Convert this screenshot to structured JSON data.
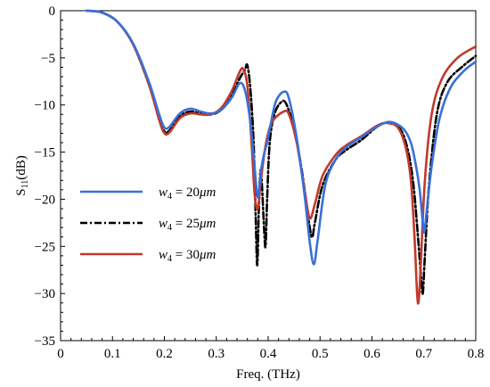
{
  "chart_data": {
    "type": "line",
    "title": "",
    "xlabel": "Freq. (THz)",
    "ylabel": "S11(dB)",
    "ylabel_main": "S",
    "ylabel_sub": "11",
    "ylabel_unit": "(dB)",
    "xlim": [
      0,
      0.8
    ],
    "ylim": [
      -35,
      0
    ],
    "x_ticks": [
      0,
      0.1,
      0.2,
      0.3,
      0.4,
      0.5,
      0.6,
      0.7,
      0.8
    ],
    "x_tick_labels": [
      "0",
      "0.1",
      "0.2",
      "0.3",
      "0.4",
      "0.5",
      "0.6",
      "0.7",
      "0.8"
    ],
    "y_ticks": [
      0,
      -5,
      -10,
      -15,
      -20,
      -25,
      -30,
      -35
    ],
    "y_tick_labels": [
      "0",
      "−5",
      "−10",
      "−15",
      "−20",
      "−25",
      "−30",
      "−35"
    ],
    "grid": false,
    "legend_position": "center-left",
    "series": [
      {
        "name": "w4 = 20μm",
        "legend_label": "w4 = 20μm",
        "legend_var": "w",
        "legend_sub": "4",
        "legend_value": " = 20",
        "legend_unit": "μm",
        "color": "#3a6fd8",
        "style": "solid",
        "points": [
          [
            0.05,
            0
          ],
          [
            0.08,
            -0.2
          ],
          [
            0.11,
            -1.2
          ],
          [
            0.14,
            -3.5
          ],
          [
            0.17,
            -7.5
          ],
          [
            0.19,
            -11
          ],
          [
            0.2,
            -12.4
          ],
          [
            0.21,
            -12.3
          ],
          [
            0.23,
            -10.9
          ],
          [
            0.25,
            -10.4
          ],
          [
            0.27,
            -10.7
          ],
          [
            0.29,
            -10.9
          ],
          [
            0.31,
            -10.5
          ],
          [
            0.33,
            -9.2
          ],
          [
            0.345,
            -7.7
          ],
          [
            0.355,
            -8.4
          ],
          [
            0.365,
            -11.5
          ],
          [
            0.373,
            -16
          ],
          [
            0.38,
            -19.8
          ],
          [
            0.386,
            -17
          ],
          [
            0.392,
            -15.2
          ],
          [
            0.398,
            -14
          ],
          [
            0.405,
            -12
          ],
          [
            0.415,
            -9.6
          ],
          [
            0.43,
            -8.6
          ],
          [
            0.44,
            -9.3
          ],
          [
            0.455,
            -13.5
          ],
          [
            0.47,
            -19.5
          ],
          [
            0.48,
            -24.5
          ],
          [
            0.488,
            -26.9
          ],
          [
            0.495,
            -24.5
          ],
          [
            0.51,
            -18.5
          ],
          [
            0.53,
            -15.8
          ],
          [
            0.55,
            -14.5
          ],
          [
            0.58,
            -13.4
          ],
          [
            0.61,
            -12.3
          ],
          [
            0.635,
            -11.8
          ],
          [
            0.66,
            -12.5
          ],
          [
            0.675,
            -14
          ],
          [
            0.685,
            -16.5
          ],
          [
            0.692,
            -19
          ],
          [
            0.698,
            -22.5
          ],
          [
            0.701,
            -23.5
          ],
          [
            0.705,
            -21.5
          ],
          [
            0.715,
            -16.5
          ],
          [
            0.73,
            -11.5
          ],
          [
            0.75,
            -8.3
          ],
          [
            0.775,
            -6.5
          ],
          [
            0.8,
            -5.4
          ]
        ]
      },
      {
        "name": "w4 = 25μm",
        "legend_label": "w4 = 25μm",
        "legend_var": "w",
        "legend_sub": "4",
        "legend_value": " = 25",
        "legend_unit": "μm",
        "color": "#000000",
        "style": "dashdot",
        "points": [
          [
            0.05,
            0
          ],
          [
            0.08,
            -0.2
          ],
          [
            0.11,
            -1.2
          ],
          [
            0.14,
            -3.6
          ],
          [
            0.17,
            -7.8
          ],
          [
            0.19,
            -11.4
          ],
          [
            0.2,
            -12.8
          ],
          [
            0.21,
            -12.7
          ],
          [
            0.23,
            -11.2
          ],
          [
            0.25,
            -10.7
          ],
          [
            0.27,
            -10.9
          ],
          [
            0.29,
            -11
          ],
          [
            0.31,
            -10.5
          ],
          [
            0.33,
            -9
          ],
          [
            0.345,
            -7.2
          ],
          [
            0.355,
            -6.3
          ],
          [
            0.36,
            -5.8
          ],
          [
            0.366,
            -8.5
          ],
          [
            0.372,
            -14
          ],
          [
            0.376,
            -22
          ],
          [
            0.379,
            -27
          ],
          [
            0.382,
            -21
          ],
          [
            0.385,
            -17
          ],
          [
            0.388,
            -18.5
          ],
          [
            0.392,
            -23
          ],
          [
            0.395,
            -25
          ],
          [
            0.398,
            -20
          ],
          [
            0.403,
            -14
          ],
          [
            0.412,
            -11
          ],
          [
            0.425,
            -9.7
          ],
          [
            0.435,
            -9.9
          ],
          [
            0.45,
            -12.5
          ],
          [
            0.465,
            -17
          ],
          [
            0.475,
            -21
          ],
          [
            0.484,
            -24
          ],
          [
            0.49,
            -22.5
          ],
          [
            0.505,
            -18.5
          ],
          [
            0.53,
            -15.8
          ],
          [
            0.55,
            -14.8
          ],
          [
            0.58,
            -13.7
          ],
          [
            0.61,
            -12.3
          ],
          [
            0.63,
            -11.9
          ],
          [
            0.655,
            -12.6
          ],
          [
            0.67,
            -15
          ],
          [
            0.68,
            -18.5
          ],
          [
            0.688,
            -23.5
          ],
          [
            0.695,
            -28.5
          ],
          [
            0.698,
            -30
          ],
          [
            0.702,
            -26
          ],
          [
            0.71,
            -18.5
          ],
          [
            0.725,
            -11
          ],
          [
            0.745,
            -7.6
          ],
          [
            0.775,
            -5.9
          ],
          [
            0.8,
            -4.8
          ]
        ]
      },
      {
        "name": "w4 = 30μm",
        "legend_label": "w4 = 30μm",
        "legend_var": "w",
        "legend_sub": "4",
        "legend_value": " = 30",
        "legend_unit": "μm",
        "color": "#c0392b",
        "style": "solid",
        "points": [
          [
            0.05,
            0
          ],
          [
            0.08,
            -0.2
          ],
          [
            0.11,
            -1.2
          ],
          [
            0.14,
            -3.6
          ],
          [
            0.17,
            -7.8
          ],
          [
            0.19,
            -11.6
          ],
          [
            0.2,
            -13
          ],
          [
            0.21,
            -12.9
          ],
          [
            0.23,
            -11.4
          ],
          [
            0.25,
            -10.9
          ],
          [
            0.27,
            -11
          ],
          [
            0.29,
            -11
          ],
          [
            0.31,
            -10.3
          ],
          [
            0.33,
            -8.5
          ],
          [
            0.345,
            -6.5
          ],
          [
            0.352,
            -6.2
          ],
          [
            0.36,
            -8
          ],
          [
            0.368,
            -14
          ],
          [
            0.374,
            -19.5
          ],
          [
            0.38,
            -21
          ],
          [
            0.386,
            -18
          ],
          [
            0.393,
            -15
          ],
          [
            0.4,
            -13
          ],
          [
            0.41,
            -11.6
          ],
          [
            0.43,
            -10.7
          ],
          [
            0.44,
            -11
          ],
          [
            0.455,
            -14
          ],
          [
            0.47,
            -19
          ],
          [
            0.48,
            -22
          ],
          [
            0.49,
            -20.5
          ],
          [
            0.505,
            -17.5
          ],
          [
            0.53,
            -15.3
          ],
          [
            0.55,
            -14.3
          ],
          [
            0.58,
            -13.3
          ],
          [
            0.61,
            -12.2
          ],
          [
            0.63,
            -11.9
          ],
          [
            0.65,
            -12.4
          ],
          [
            0.665,
            -14.5
          ],
          [
            0.675,
            -18
          ],
          [
            0.682,
            -24
          ],
          [
            0.687,
            -30
          ],
          [
            0.69,
            -30.8
          ],
          [
            0.694,
            -27
          ],
          [
            0.702,
            -18
          ],
          [
            0.715,
            -11
          ],
          [
            0.735,
            -7.2
          ],
          [
            0.765,
            -5
          ],
          [
            0.8,
            -3.8
          ]
        ]
      }
    ]
  }
}
